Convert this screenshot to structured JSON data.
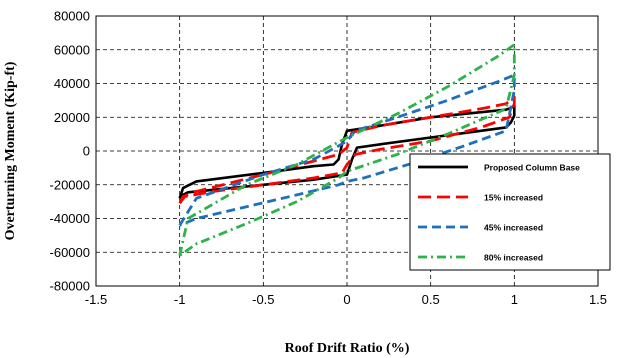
{
  "chart_data": {
    "type": "line",
    "title": "",
    "xlabel": "Roof Drift Ratio (%)",
    "ylabel": "Overturning Moment (Kip-ft)",
    "xlim": [
      -1.5,
      1.5
    ],
    "ylim": [
      -80000,
      80000
    ],
    "x_ticks": [
      -1.5,
      -1,
      -0.5,
      0,
      0.5,
      1,
      1.5
    ],
    "x_tick_labels": [
      "-1.5",
      "-1",
      "-0.5",
      "0",
      "0.5",
      "1",
      "1.5"
    ],
    "y_ticks": [
      -80000,
      -60000,
      -40000,
      -20000,
      0,
      20000,
      40000,
      60000,
      80000
    ],
    "y_tick_labels": [
      "-80000",
      "-60000",
      "-40000",
      "-20000",
      "0",
      "20000",
      "40000",
      "60000",
      "80000"
    ],
    "grid": "dashed",
    "legend_position": "right",
    "series": [
      {
        "name": "Proposed Column Base",
        "color": "#000000",
        "dash": "solid",
        "x": [
          -1.0,
          -0.98,
          -0.9,
          -0.5,
          -0.2,
          -0.08,
          -0.05,
          -0.03,
          0.0,
          0.2,
          0.5,
          0.8,
          0.95,
          0.98,
          1.0,
          1.0,
          0.98,
          0.95,
          0.8,
          0.5,
          0.2,
          0.06,
          0.03,
          0.0,
          -0.2,
          -0.5,
          -0.8,
          -0.95,
          -0.98,
          -1.0
        ],
        "y": [
          -28000,
          -22000,
          -18000,
          -13000,
          -9000,
          -8000,
          -5000,
          4000,
          12000,
          15000,
          20000,
          23000,
          24500,
          25500,
          27000,
          21000,
          17000,
          14000,
          12000,
          8000,
          4000,
          2000,
          -5000,
          -14000,
          -17000,
          -20000,
          -23000,
          -24500,
          -26000,
          -28000
        ]
      },
      {
        "name": "15% increased",
        "color": "#ff0000",
        "dash": "long-dash",
        "x": [
          -1.0,
          -0.98,
          -0.9,
          -0.5,
          -0.2,
          -0.05,
          0.0,
          0.03,
          0.2,
          0.5,
          0.8,
          0.95,
          1.0,
          1.0,
          0.97,
          0.8,
          0.5,
          0.2,
          0.05,
          0.0,
          -0.03,
          -0.2,
          -0.5,
          -0.8,
          -0.97,
          -1.0
        ],
        "y": [
          -31000,
          -27000,
          -24000,
          -14000,
          -6000,
          -2000,
          2000,
          11000,
          15000,
          20000,
          25000,
          28000,
          32000,
          28000,
          20000,
          14000,
          6000,
          1000,
          -2000,
          -8000,
          -13000,
          -16000,
          -20000,
          -24000,
          -27000,
          -31000
        ]
      },
      {
        "name": "45% increased",
        "color": "#1f6fbf",
        "dash": "dash",
        "x": [
          -1.0,
          -0.9,
          -0.5,
          -0.2,
          -0.05,
          0.0,
          0.05,
          0.3,
          0.6,
          0.9,
          1.0,
          1.0,
          0.95,
          0.7,
          0.4,
          0.1,
          0.0,
          -0.05,
          -0.3,
          -0.6,
          -0.9,
          -1.0
        ],
        "y": [
          -44000,
          -28000,
          -14000,
          -5000,
          3000,
          6000,
          12000,
          20000,
          30000,
          41000,
          45000,
          36000,
          12000,
          3000,
          -7000,
          -16000,
          -18000,
          -20000,
          -26000,
          -33000,
          -40000,
          -44000
        ]
      },
      {
        "name": "80% increased",
        "color": "#2db34a",
        "dash": "dash-dot",
        "x": [
          -1.0,
          -0.95,
          -0.6,
          -0.3,
          0.0,
          0.3,
          0.6,
          0.9,
          1.0,
          1.0,
          0.95,
          0.6,
          0.3,
          0.0,
          -0.05,
          -0.3,
          -0.6,
          -0.9,
          -1.0
        ],
        "y": [
          -62000,
          -40000,
          -20000,
          -8000,
          8000,
          22000,
          38000,
          56000,
          63000,
          45000,
          25000,
          10000,
          -2000,
          -12000,
          -16000,
          -30000,
          -43000,
          -55000,
          -62000
        ]
      }
    ]
  }
}
